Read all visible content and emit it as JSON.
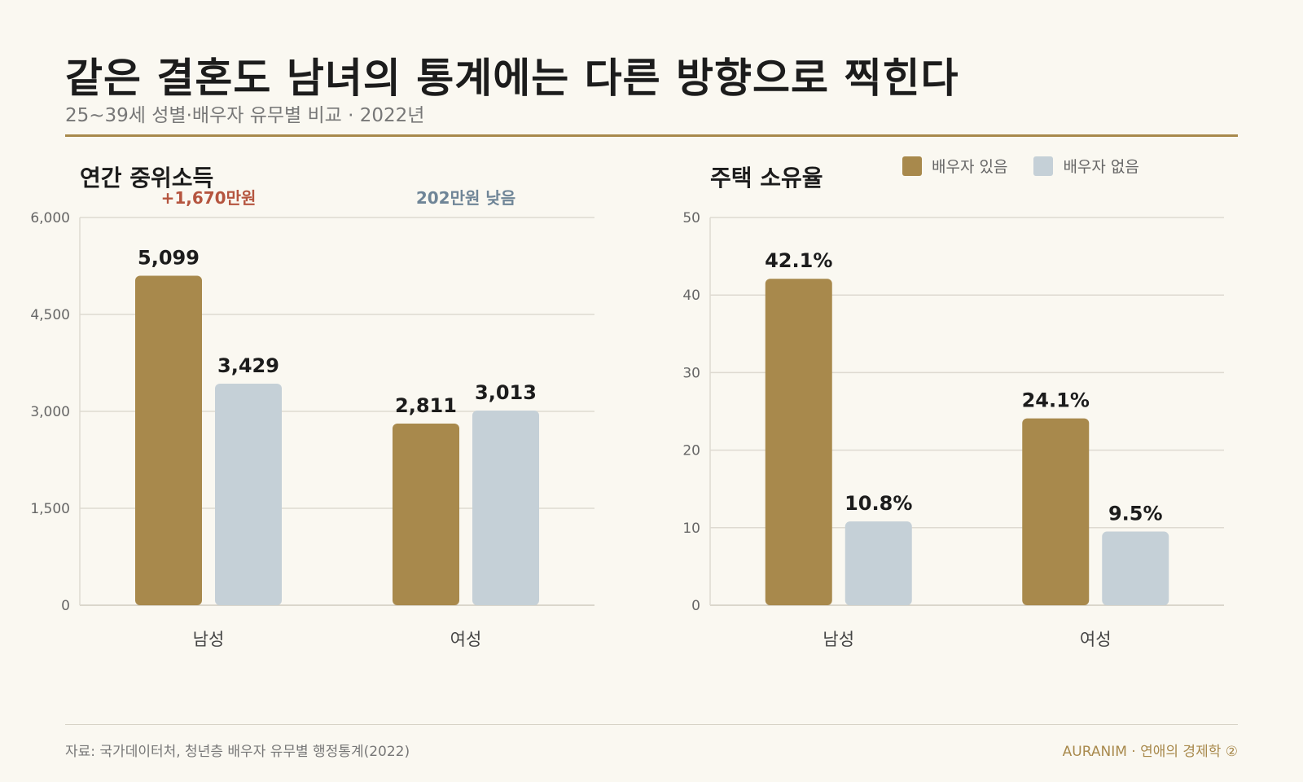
{
  "header": {
    "title": "같은 결혼도 남녀의 통계에는 다른 방향으로 찍힌다",
    "subtitle": "25~39세 성별·배우자 유무별 비교 · 2022년"
  },
  "legend": {
    "items": [
      {
        "label": "배우자 있음",
        "color": "#a8894c"
      },
      {
        "label": "배우자 없음",
        "color": "#c5d0d7"
      }
    ]
  },
  "footer": {
    "source": "자료: 국가데이터처, 청년층 배우자 유무별 행정통계(2022)",
    "brand": "AURANIM · 연애의 경제학 ②"
  },
  "chart_data": [
    {
      "type": "bar",
      "title": "연간 중위소득",
      "categories": [
        "남성",
        "여성"
      ],
      "series": [
        {
          "name": "배우자 있음",
          "values": [
            5099,
            2811
          ],
          "color": "#a8894c"
        },
        {
          "name": "배우자 없음",
          "values": [
            3429,
            3013
          ],
          "color": "#c5d0d7"
        }
      ],
      "value_labels": [
        [
          "5,099",
          "2,811"
        ],
        [
          "3,429",
          "3,013"
        ]
      ],
      "ylim": [
        0,
        6000
      ],
      "yticks": [
        0,
        1500,
        3000,
        4500,
        6000
      ],
      "ytick_labels": [
        "0",
        "1,500",
        "3,000",
        "4,500",
        "6,000"
      ],
      "grid": true,
      "annotations": [
        {
          "text": "+1,670만원",
          "category": "남성",
          "color": "#b5553f"
        },
        {
          "text": "202만원 낮음",
          "category": "여성",
          "color": "#6f8597"
        }
      ]
    },
    {
      "type": "bar",
      "title": "주택 소유율",
      "categories": [
        "남성",
        "여성"
      ],
      "series": [
        {
          "name": "배우자 있음",
          "values": [
            42.1,
            24.1
          ],
          "color": "#a8894c"
        },
        {
          "name": "배우자 없음",
          "values": [
            10.8,
            9.5
          ],
          "color": "#c5d0d7"
        }
      ],
      "value_labels": [
        [
          "42.1%",
          "24.1%"
        ],
        [
          "10.8%",
          "9.5%"
        ]
      ],
      "ylim": [
        0,
        50
      ],
      "yticks": [
        0,
        10,
        20,
        30,
        40,
        50
      ],
      "ytick_labels": [
        "0",
        "10",
        "20",
        "30",
        "40",
        "50"
      ],
      "grid": true,
      "annotations": []
    }
  ]
}
